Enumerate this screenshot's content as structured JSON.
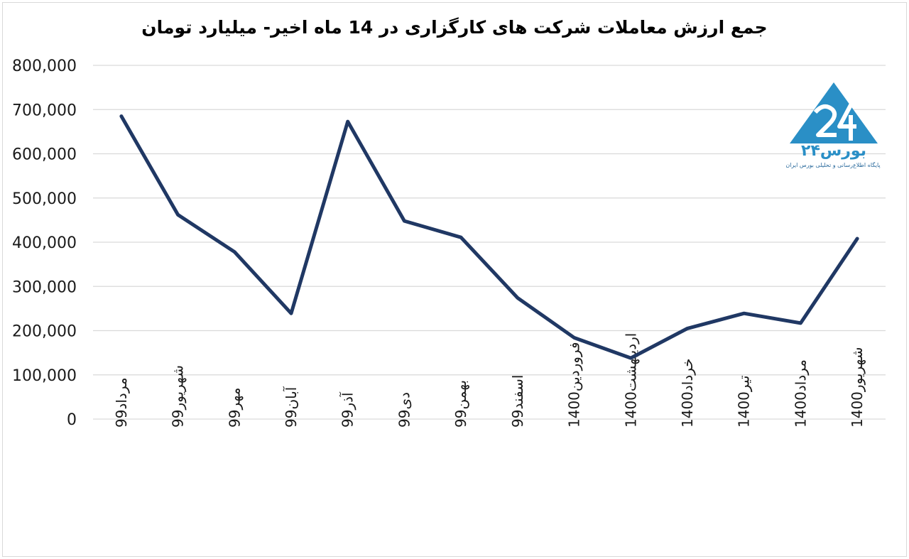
{
  "chart_data": {
    "type": "line",
    "title": "جمع ارزش معاملات شرکت های کارگزاری در 14 ماه اخیر- میلیارد تومان",
    "categories": [
      "مرداد99",
      "شهریور99",
      "مهر99",
      "آبان99",
      "آذر99",
      "دی99",
      "بهمن99",
      "اسفند99",
      "فروردین1400",
      "اردیبهشت1400",
      "خرداد1400",
      "تیر1400",
      "مرداد1400",
      "شهریور1400"
    ],
    "series": [
      {
        "values": [
          685000,
          462000,
          378000,
          239000,
          673000,
          448000,
          411000,
          274000,
          184000,
          138000,
          205000,
          239000,
          217000,
          408000
        ],
        "color": "#203864"
      }
    ],
    "ylim": [
      0,
      800000
    ],
    "yticks": [
      "0",
      "100,000",
      "200,000",
      "300,000",
      "400,000",
      "500,000",
      "600,000",
      "700,000",
      "800,000"
    ],
    "grid": true,
    "xlabel": "",
    "ylabel": ""
  },
  "logo": {
    "text": "بورس۲۴",
    "subtitle": "پایگاه اطلاع‌رسانی و تحلیلی بورس ایران"
  }
}
